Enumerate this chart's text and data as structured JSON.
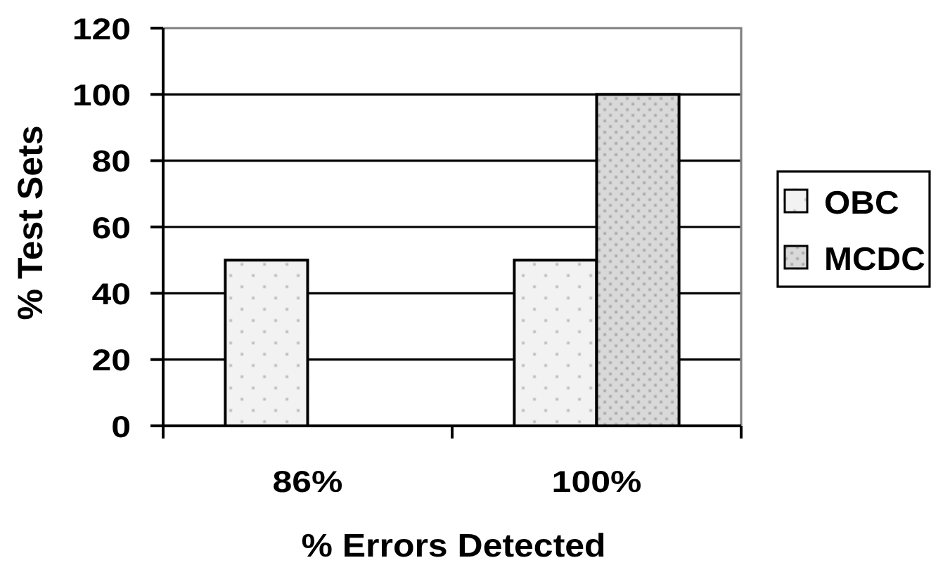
{
  "chart_data": {
    "type": "bar",
    "xlabel": "% Errors Detected",
    "ylabel": "% Test Sets",
    "categories": [
      "86%",
      "100%"
    ],
    "series": [
      {
        "name": "OBC",
        "color": "#f2f2f2",
        "values": [
          50,
          50
        ]
      },
      {
        "name": "MCDC",
        "color": "#d9d9d9",
        "values": [
          null,
          100
        ]
      }
    ],
    "ylim": [
      0,
      120
    ],
    "yticks": [
      0,
      20,
      40,
      60,
      80,
      100,
      120
    ],
    "grid": "y",
    "legend": "right"
  }
}
